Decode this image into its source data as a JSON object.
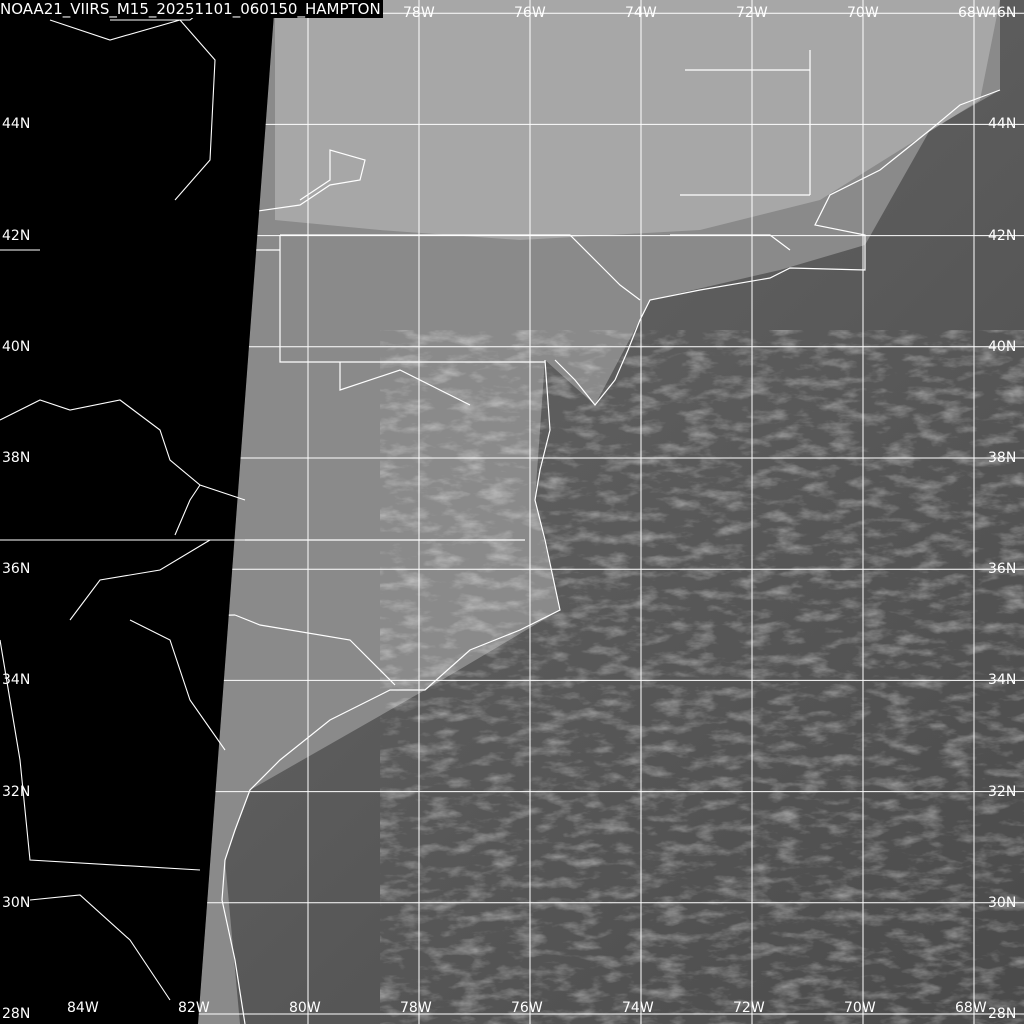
{
  "title": "NOAA21_VIIRS_M15_20251101_060150_HAMPTON",
  "grid": {
    "latitudes": [
      "46N",
      "44N",
      "42N",
      "40N",
      "38N",
      "36N",
      "34N",
      "32N",
      "30N",
      "28N"
    ],
    "longitudes": [
      "84W",
      "82W",
      "80W",
      "78W",
      "76W",
      "74W",
      "72W",
      "70W",
      "68W"
    ],
    "top_lon_labels": [
      "78W",
      "76W",
      "74W",
      "72W",
      "70W",
      "68W"
    ],
    "bottom_lon_labels": [
      "84W",
      "82W",
      "80W",
      "78W",
      "76W",
      "74W",
      "72W",
      "70W",
      "68W"
    ],
    "left_lat_labels": [
      "44N",
      "42N",
      "40N",
      "38N",
      "36N",
      "34N",
      "32N",
      "30N",
      "28N"
    ],
    "right_lat_labels": [
      "46N",
      "44N",
      "42N",
      "40N",
      "38N",
      "36N",
      "34N",
      "32N",
      "30N",
      "28N"
    ]
  },
  "colors": {
    "grid": "#ffffff",
    "no_data": "#000000",
    "outlines": "#ffffff"
  }
}
